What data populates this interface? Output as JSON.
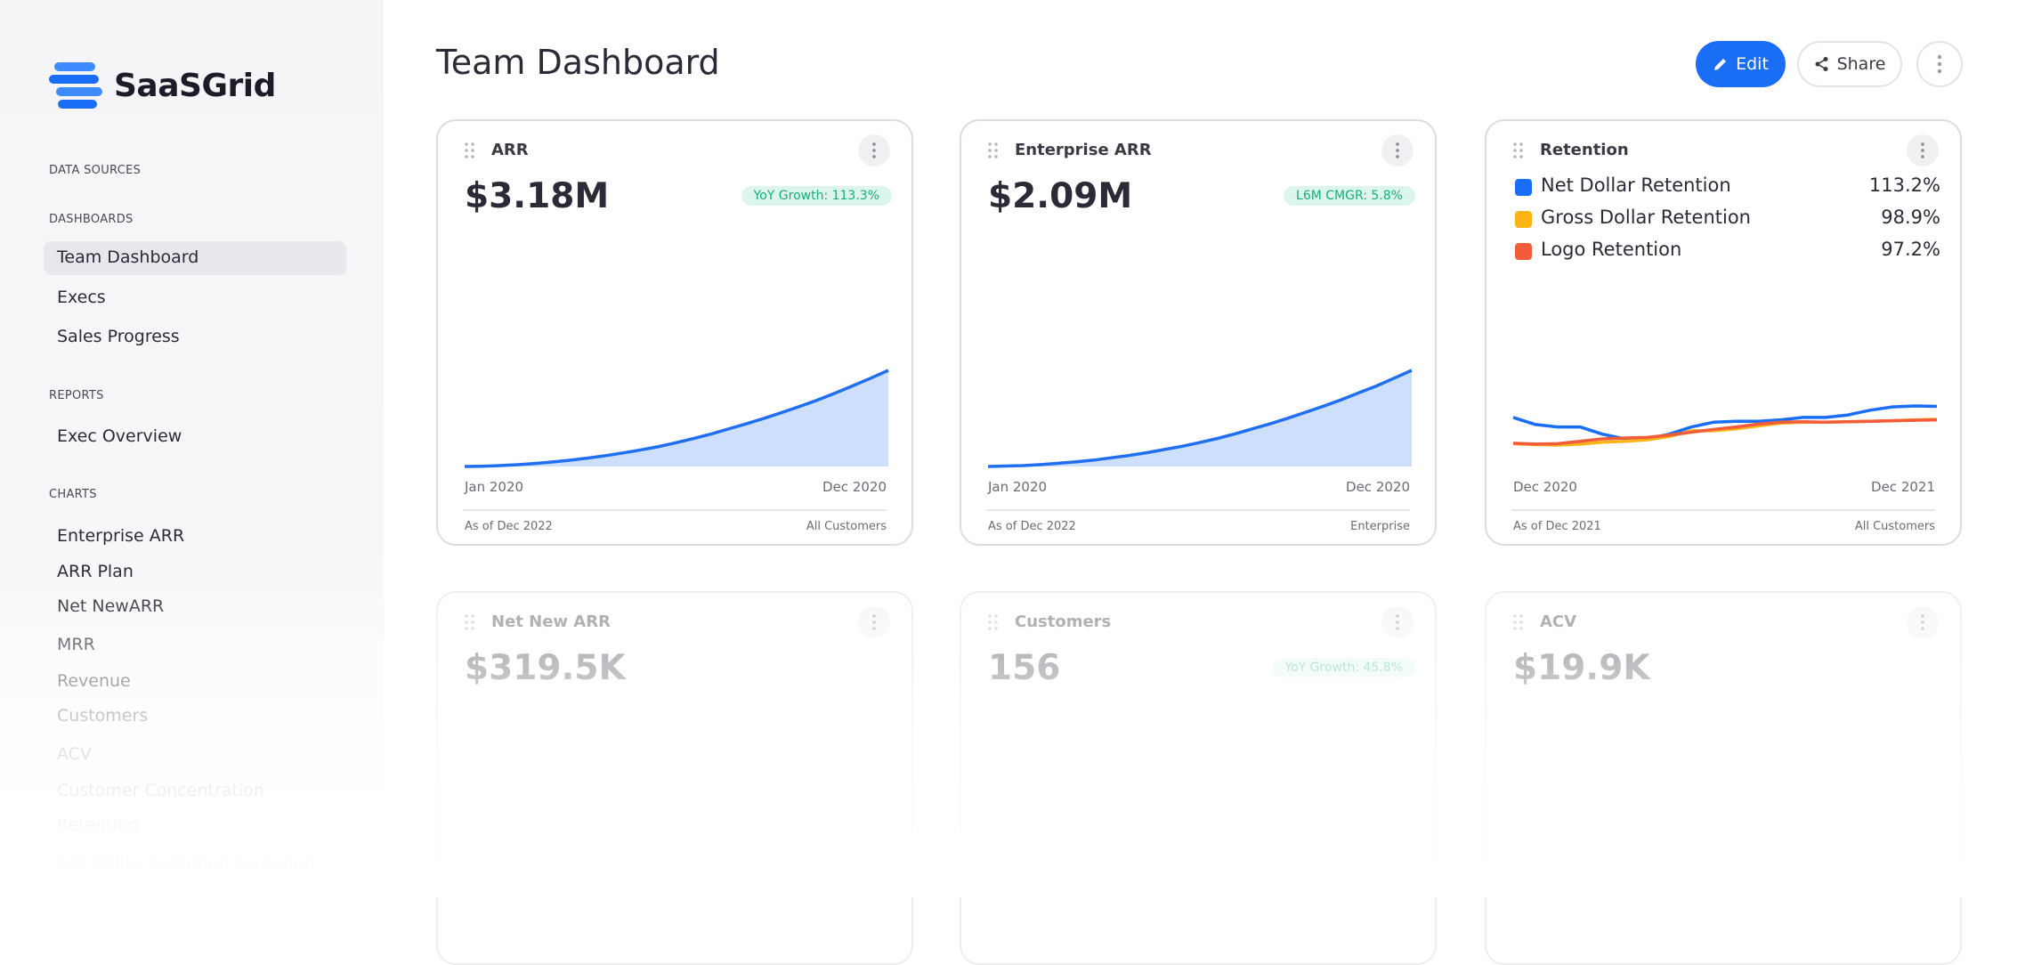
{
  "sidebar": {
    "logo": "SaaSGrid",
    "sections": [
      {
        "title": "DATA SOURCES"
      },
      {
        "title": "DASHBOARDS",
        "items": [
          "Team Dashboard",
          "Execs",
          "Sales Progress"
        ],
        "selected_index": 0
      },
      {
        "title": "REPORTS",
        "items": [
          "Exec Overview"
        ]
      },
      {
        "title": "CHARTS",
        "items": [
          "Enterprise ARR",
          "ARR Plan",
          "Net NewARR",
          "MRR",
          "Revenue",
          "Customers",
          "ACV",
          "Customer Concentration",
          "Retention",
          "Net Dollar Retention by Cohort"
        ]
      }
    ]
  },
  "header": {
    "title": "Team Dashboard",
    "buttons": [
      "Edit",
      "Share"
    ]
  },
  "cards": [
    {
      "title": "ARR",
      "value": "$3.18M",
      "badge": "YoY Growth: 113.3%",
      "x_start": "Jan 2020",
      "x_end": "Dec 2020",
      "footer_left": "As of Dec 2022",
      "footer_right": "All Customers",
      "chart": {
        "type": "area",
        "color": "#1f6ff0",
        "values": [
          0.0,
          0.01,
          0.03,
          0.06,
          0.1,
          0.15,
          0.21,
          0.28,
          0.36,
          0.45,
          0.55,
          0.66,
          0.79,
          0.93,
          1.08,
          1.25,
          1.42,
          1.6,
          1.79,
          1.99,
          2.2,
          2.43,
          2.67,
          2.92,
          3.18
        ]
      }
    },
    {
      "title": "Enterprise ARR",
      "value": "$2.09M",
      "badge": "L6M CMGR: 5.8%",
      "x_start": "Jan 2020",
      "x_end": "Dec 2020",
      "footer_left": "As of Dec 2022",
      "footer_right": "Enterprise",
      "chart": {
        "type": "area",
        "color": "#1f6ff0",
        "values": [
          0.0,
          0.01,
          0.02,
          0.04,
          0.07,
          0.1,
          0.14,
          0.19,
          0.24,
          0.3,
          0.37,
          0.44,
          0.52,
          0.61,
          0.71,
          0.82,
          0.93,
          1.05,
          1.18,
          1.31,
          1.45,
          1.6,
          1.75,
          1.92,
          2.09
        ]
      }
    },
    {
      "title": "Retention",
      "x_start": "Dec 2020",
      "x_end": "Dec 2021",
      "footer_left": "As of Dec 2021",
      "footer_right": "All Customers",
      "legend": [
        {
          "name": "Net Dollar Retention",
          "color": "#1a6ef5",
          "value": "113.2%"
        },
        {
          "name": "Gross Dollar Retention",
          "color": "#fbb416",
          "value": "98.9%"
        },
        {
          "name": "Logo Retention",
          "color": "#f25c3b",
          "value": "97.2%"
        }
      ],
      "chart": {
        "type": "line",
        "series": [
          {
            "color": "#1a6ef5",
            "values": [
              104,
              102.5,
              102,
              102,
              100.5,
              99.5,
              99.5,
              100.5,
              102,
              103,
              103.2,
              103.2,
              103.5,
              104,
              104,
              104.5,
              105.5,
              106.2,
              106.4,
              106.3
            ]
          },
          {
            "color": "#fbb416",
            "values": [
              98.5,
              98.3,
              98.2,
              98.4,
              98.8,
              99,
              99.3,
              100,
              101.2,
              101.2,
              101.6,
              102.2,
              102.8,
              103,
              103,
              103.1,
              103.2,
              103.3,
              103.5,
              103.6
            ]
          },
          {
            "color": "#f25c3b",
            "values": [
              98.6,
              98.4,
              98.5,
              99,
              99.5,
              99.7,
              99.8,
              100.3,
              100.9,
              101.5,
              102,
              102.6,
              103,
              103.1,
              103,
              103.1,
              103.2,
              103.3,
              103.4,
              103.5
            ]
          }
        ]
      }
    },
    {
      "title": "Net New ARR",
      "value": "$319.5K"
    },
    {
      "title": "Customers",
      "value": "156",
      "badge": "YoY Growth: 45.8%"
    },
    {
      "title": "ACV",
      "value": "$19.9K"
    }
  ]
}
